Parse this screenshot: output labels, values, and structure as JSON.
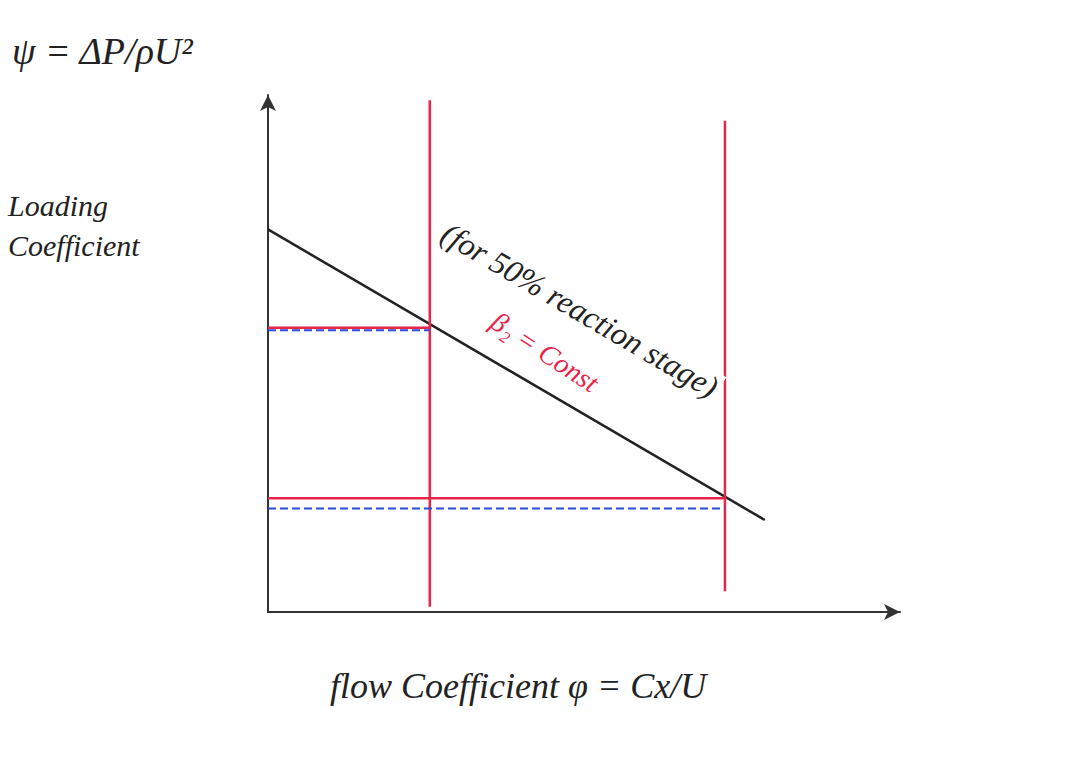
{
  "chart_data": {
    "type": "line",
    "title": "ψ = ΔP/ρU²",
    "y_label": "Loading Coefficient",
    "x_label": "flow Coefficient φ = Cx/U",
    "annotations": [
      {
        "text": "(for 50% reaction stage)",
        "color": "#222222"
      },
      {
        "text": "β₂ = Const",
        "color": "#e8244a"
      }
    ],
    "xlim": [
      0,
      1
    ],
    "ylim": [
      0,
      1
    ],
    "tick_labels": false,
    "grid": false,
    "series": [
      {
        "color": "#222222",
        "line_style": "solid",
        "x": [
          0,
          0.786
        ],
        "values": [
          0.74,
          0.178
        ]
      },
      {
        "color": "#e8244a",
        "line_style": "solid",
        "x": [
          0.256,
          0.256
        ],
        "values": [
          0.01,
          0.99
        ]
      },
      {
        "color": "#e8244a",
        "line_style": "solid",
        "x": [
          0.723,
          0.723
        ],
        "values": [
          0.04,
          0.95
        ]
      },
      {
        "color": "#e8244a",
        "line_style": "solid",
        "x": [
          0,
          0.256
        ],
        "values": [
          0.55,
          0.55
        ]
      },
      {
        "color": "#2b4bd8",
        "line_style": "dashed",
        "x": [
          0,
          0.256
        ],
        "values": [
          0.545,
          0.545
        ]
      },
      {
        "color": "#e8244a",
        "line_style": "solid",
        "x": [
          0,
          0.723
        ],
        "values": [
          0.22,
          0.22
        ]
      },
      {
        "color": "#2b4bd8",
        "line_style": "dashed",
        "x": [
          0,
          0.723
        ],
        "values": [
          0.2,
          0.2
        ]
      }
    ]
  }
}
